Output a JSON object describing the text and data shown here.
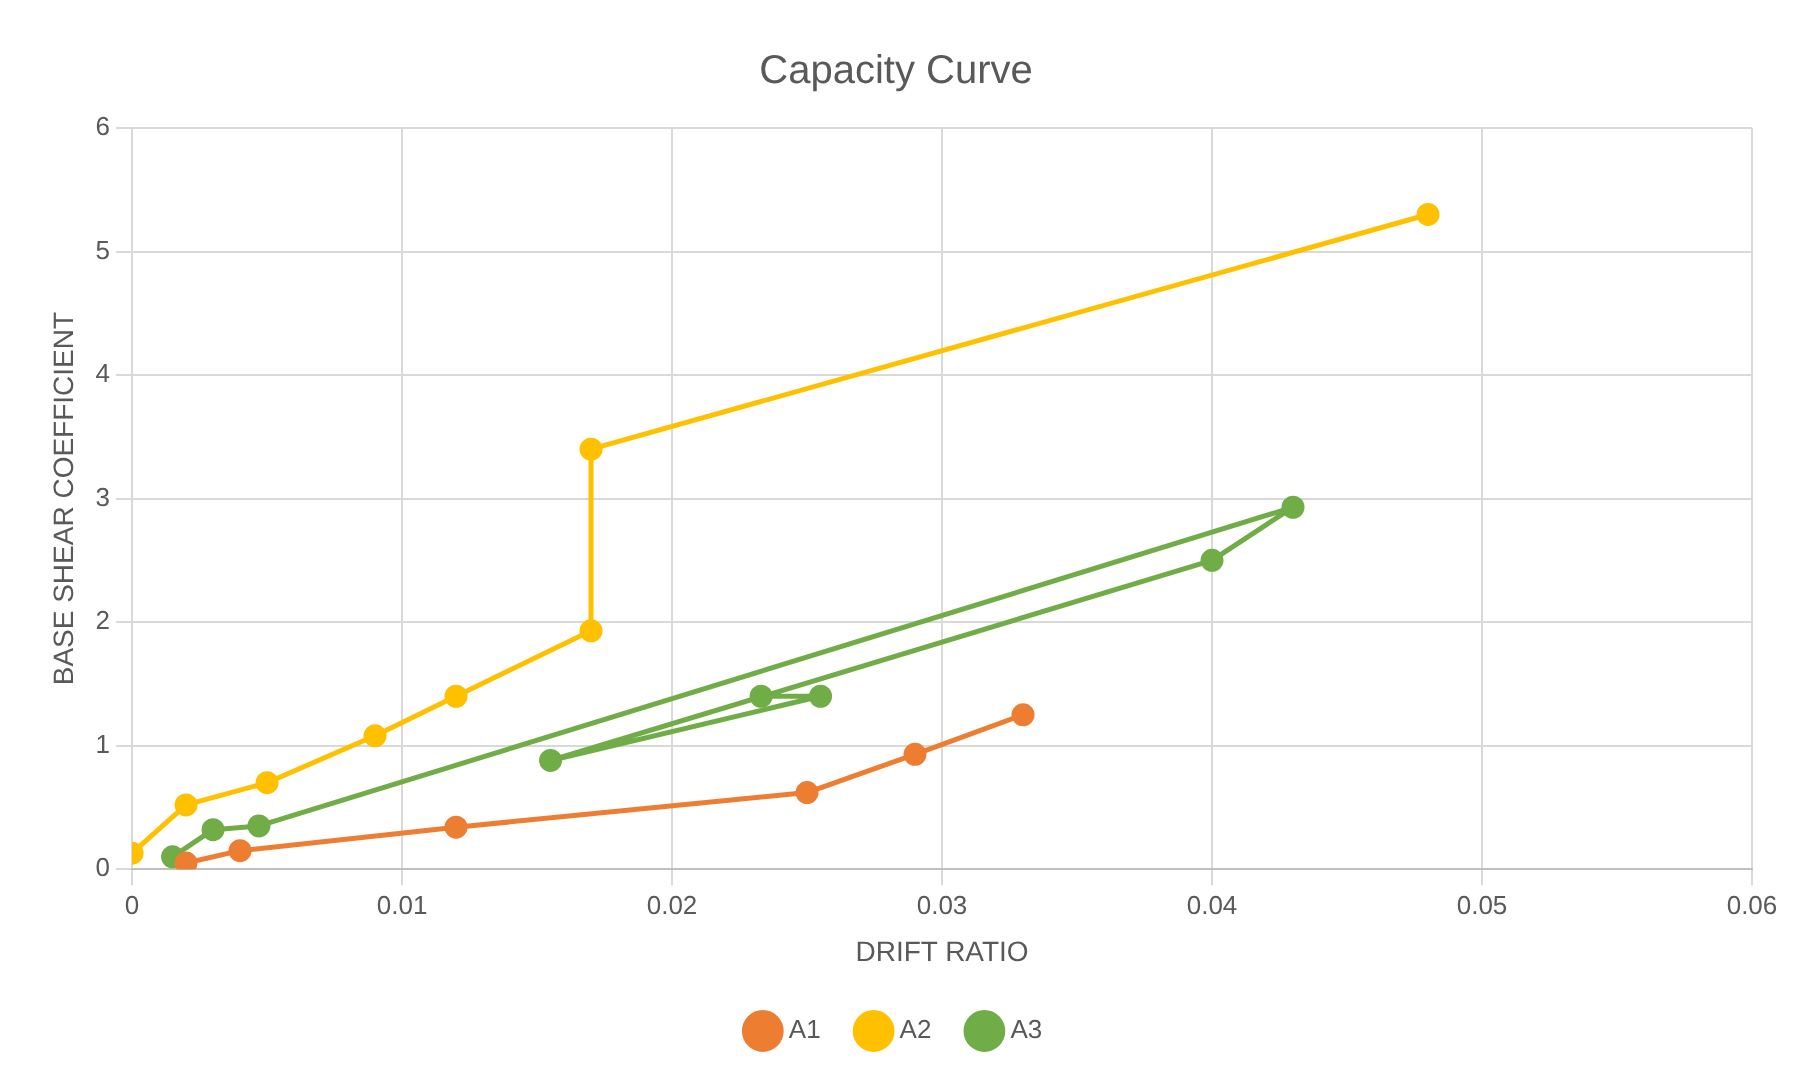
{
  "chart_data": {
    "type": "line",
    "title": "Capacity Curve",
    "xlabel": "DRIFT RATIO",
    "ylabel": "BASE SHEAR COEFFICIENT",
    "xlim": [
      0,
      0.06
    ],
    "xticks": [
      0,
      0.01,
      0.02,
      0.03,
      0.04,
      0.05,
      0.06
    ],
    "ylim": [
      0,
      6
    ],
    "yticks": [
      0,
      1,
      2,
      3,
      4,
      5,
      6
    ],
    "grid": true,
    "legend": "bottom",
    "marker": "circle",
    "line_style": "solid",
    "series": [
      {
        "name": "A1",
        "color": "#ed7d31",
        "x": [
          0.002,
          0.004,
          0.012,
          0.025,
          0.029,
          0.033
        ],
        "values": [
          0.05,
          0.15,
          0.34,
          0.62,
          0.93,
          1.25
        ]
      },
      {
        "name": "A2",
        "color": "#ffc000",
        "x": [
          0,
          0.002,
          0.005,
          0.009,
          0.012,
          0.017,
          0.017,
          0.048
        ],
        "values": [
          0.13,
          0.52,
          0.7,
          1.08,
          1.4,
          1.93,
          3.4,
          5.3
        ]
      },
      {
        "name": "A3",
        "color": "#70ad47",
        "x": [
          0.0015,
          0.003,
          0.0047,
          0.043,
          0.04,
          0.0155,
          0.0255,
          0.0233
        ],
        "values": [
          0.1,
          0.32,
          0.35,
          2.93,
          2.5,
          0.88,
          1.4,
          1.4
        ]
      }
    ]
  }
}
